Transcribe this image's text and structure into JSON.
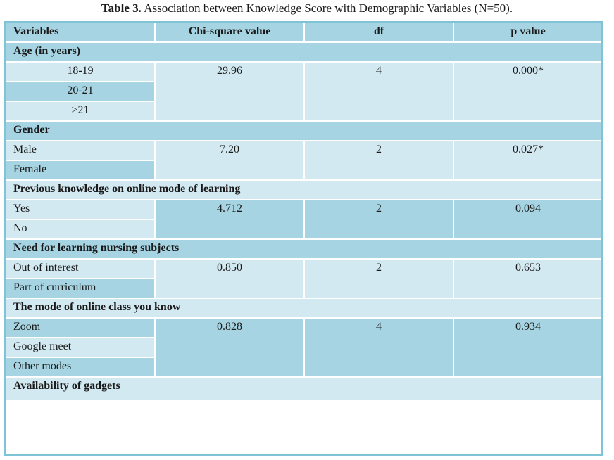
{
  "caption": {
    "label": "Table 3.",
    "text": " Association between Knowledge Score with Demographic Variables (N=50)."
  },
  "headers": [
    "Variables",
    "Chi-square value",
    "df",
    "p value"
  ],
  "sections": [
    {
      "title": "Age (in years)",
      "rows": [
        "18-19",
        "20-21",
        ">21"
      ],
      "chi_square": "29.96",
      "df": "4",
      "p_value": "0.000*"
    },
    {
      "title": "Gender",
      "rows": [
        "Male",
        "Female"
      ],
      "chi_square": "7.20",
      "df": "2",
      "p_value": "0.027*"
    },
    {
      "title": "Previous knowledge on online mode of learning",
      "rows": [
        "Yes",
        "No"
      ],
      "chi_square": "4.712",
      "df": "2",
      "p_value": "0.094"
    },
    {
      "title": "Need for learning nursing subjects",
      "rows": [
        "Out of interest",
        "Part of curriculum"
      ],
      "chi_square": "0.850",
      "df": "2",
      "p_value": "0.653"
    },
    {
      "title": "The mode of online class you know",
      "rows": [
        "Zoom",
        "Google meet",
        "Other modes"
      ],
      "chi_square": "0.828",
      "df": "4",
      "p_value": "0.934"
    },
    {
      "title": "Availability of gadgets"
    }
  ]
}
